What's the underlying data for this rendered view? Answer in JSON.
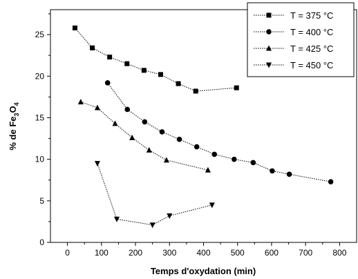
{
  "chart_data": {
    "type": "line",
    "title": "",
    "xlabel": "Temps d'oxydation (min)",
    "ylabel_parts": [
      "% de Fe",
      "3",
      "O",
      "4"
    ],
    "xlim": [
      -50,
      850
    ],
    "ylim": [
      0,
      28
    ],
    "x_ticks": [
      0,
      100,
      200,
      300,
      400,
      500,
      600,
      700,
      800
    ],
    "y_ticks": [
      0,
      5,
      10,
      15,
      20,
      25
    ],
    "grid": false,
    "legend_position": "top-right",
    "line_style": "dotted",
    "color": "#000000",
    "series": [
      {
        "name": "T = 375 °C",
        "marker": "square",
        "x": [
          22,
          73,
          124,
          175,
          225,
          274,
          326,
          377,
          497
        ],
        "y": [
          25.8,
          23.4,
          22.3,
          21.5,
          20.7,
          20.2,
          19.1,
          18.2,
          18.6
        ]
      },
      {
        "name": "T = 400 °C",
        "marker": "circle",
        "x": [
          118,
          176,
          227,
          278,
          329,
          380,
          432,
          490,
          546,
          602,
          652,
          774
        ],
        "y": [
          19.2,
          16.0,
          14.5,
          13.3,
          12.4,
          11.5,
          10.6,
          10.0,
          9.6,
          8.6,
          8.2,
          7.3
        ]
      },
      {
        "name": "T = 425 °C",
        "marker": "triangle-up",
        "x": [
          39,
          88,
          140,
          190,
          240,
          291,
          413
        ],
        "y": [
          16.9,
          16.2,
          14.3,
          12.6,
          11.1,
          9.9,
          8.7
        ]
      },
      {
        "name": "T = 450 °C",
        "marker": "triangle-down",
        "x": [
          88,
          145,
          250,
          300,
          425
        ],
        "y": [
          9.5,
          2.8,
          2.1,
          3.2,
          4.5
        ]
      }
    ]
  }
}
